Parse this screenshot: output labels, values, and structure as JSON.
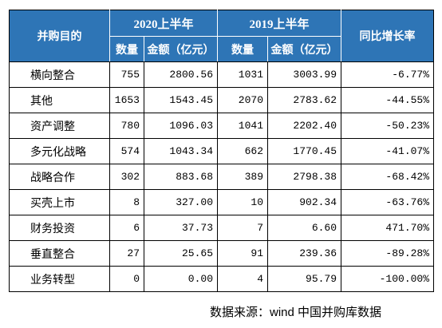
{
  "chart_data": {
    "type": "table",
    "header": {
      "row_label": "并购目的",
      "groups": [
        {
          "label": "2020上半年",
          "columns": [
            "数量",
            "金额（亿元）"
          ]
        },
        {
          "label": "2019上半年",
          "columns": [
            "数量",
            "金额（亿元）"
          ]
        }
      ],
      "change_label": "同比增长率"
    },
    "rows": [
      {
        "label": "横向整合",
        "values": [
          "755",
          "2800.56",
          "1031",
          "3003.99",
          "-6.77%"
        ]
      },
      {
        "label": "其他",
        "values": [
          "1653",
          "1543.45",
          "2070",
          "2783.62",
          "-44.55%"
        ]
      },
      {
        "label": "资产调整",
        "values": [
          "780",
          "1096.03",
          "1041",
          "2202.40",
          "-50.23%"
        ]
      },
      {
        "label": "多元化战略",
        "values": [
          "574",
          "1043.34",
          "662",
          "1770.45",
          "-41.07%"
        ]
      },
      {
        "label": "战略合作",
        "values": [
          "302",
          "883.68",
          "389",
          "2798.38",
          "-68.42%"
        ]
      },
      {
        "label": "买壳上市",
        "values": [
          "8",
          "327.00",
          "10",
          "902.34",
          "-63.76%"
        ]
      },
      {
        "label": "财务投资",
        "values": [
          "6",
          "37.73",
          "7",
          "6.60",
          "471.70%"
        ]
      },
      {
        "label": "垂直整合",
        "values": [
          "27",
          "25.65",
          "91",
          "239.36",
          "-89.28%"
        ]
      },
      {
        "label": "业务转型",
        "values": [
          "0",
          "0.00",
          "4",
          "95.79",
          "-100.00%"
        ]
      }
    ]
  },
  "footer": {
    "source": "数据来源：wind 中国并购库数据"
  },
  "colors": {
    "header_background": "#2E75B6",
    "header_text": "#FFFFFF",
    "grid_line": "#000000",
    "page_background": "#FFFFFF"
  }
}
